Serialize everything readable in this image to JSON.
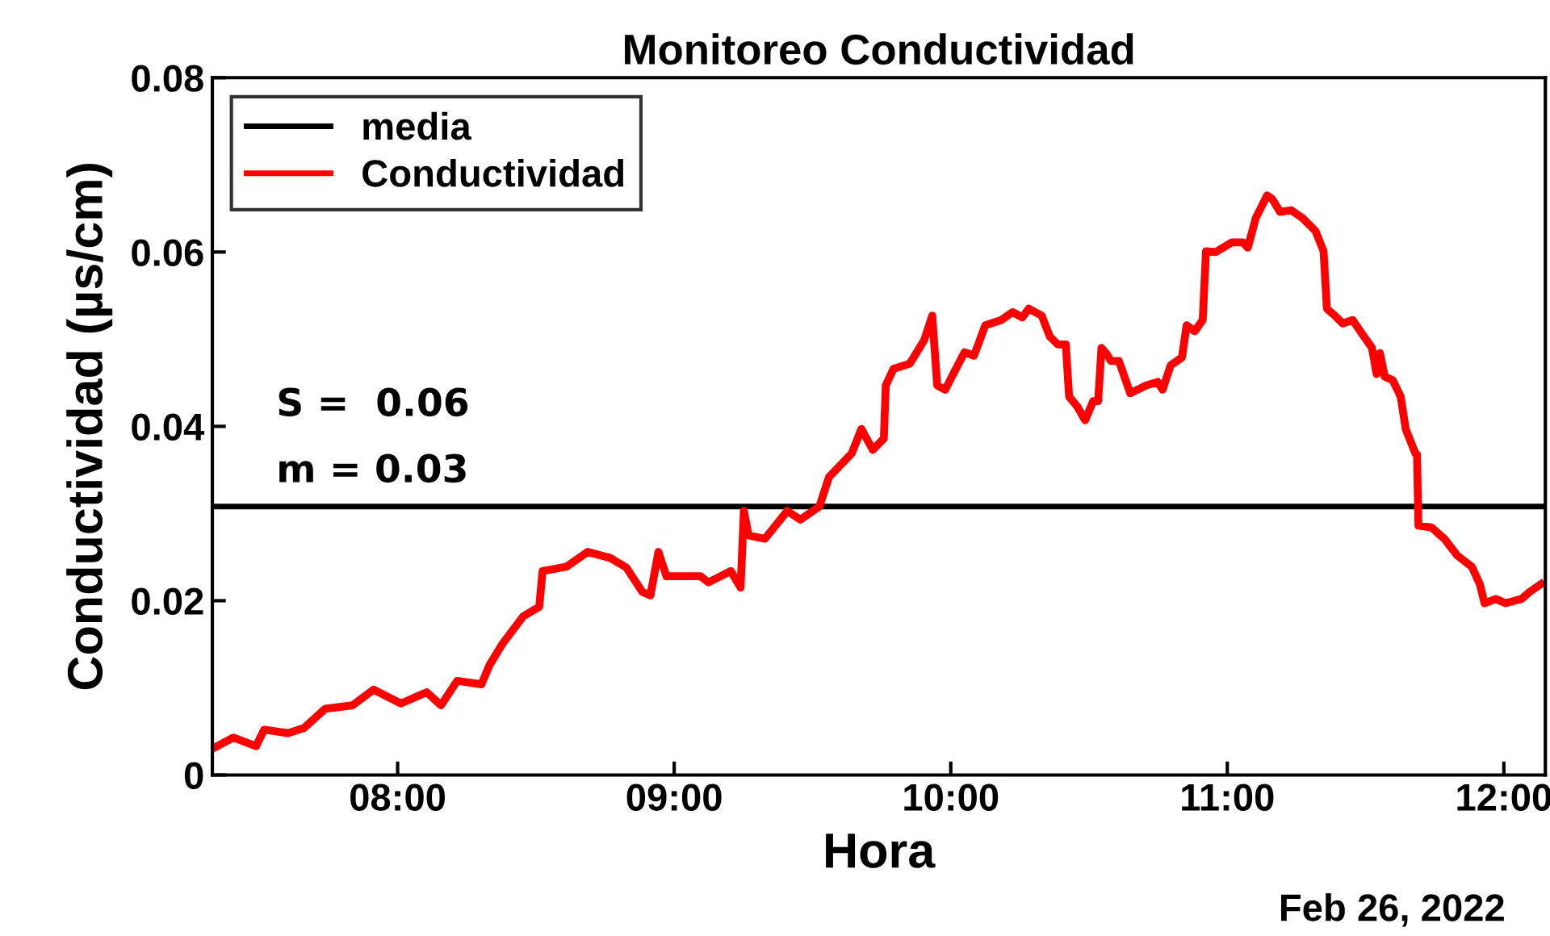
{
  "chart_data": {
    "type": "line",
    "title": "Monitoreo Conductividad",
    "xlabel": "Hora",
    "ylabel": "Conductividad (µs/cm)",
    "annotations": [
      "S =  0.06",
      "m = 0.03",
      "Feb 26, 2022"
    ],
    "xlim": [
      7.33,
      12.15
    ],
    "xticks": [
      {
        "value": 8,
        "label": "08:00"
      },
      {
        "value": 9,
        "label": "09:00"
      },
      {
        "value": 10,
        "label": "10:00"
      },
      {
        "value": 11,
        "label": "11:00"
      },
      {
        "value": 12,
        "label": "12:00"
      }
    ],
    "ylim": [
      0,
      0.08
    ],
    "yticks": [
      {
        "value": 0,
        "label": "0"
      },
      {
        "value": 0.02,
        "label": "0.02"
      },
      {
        "value": 0.04,
        "label": "0.04"
      },
      {
        "value": 0.06,
        "label": "0.06"
      },
      {
        "value": 0.08,
        "label": "0.08"
      }
    ],
    "grid": false,
    "legend": "top left",
    "marker": "none",
    "line_style": "solid",
    "ref_lines": [
      {
        "axis": "y",
        "value": 0.0308,
        "label": "media",
        "color": "#000000"
      }
    ],
    "series": [
      {
        "name": "Conductividad",
        "color": "#ff0000",
        "x": [
          7.33,
          7.406,
          7.488,
          7.517,
          7.604,
          7.662,
          7.738,
          7.837,
          7.913,
          8.012,
          8.105,
          8.157,
          8.215,
          8.303,
          8.332,
          8.378,
          8.454,
          8.512,
          8.524,
          8.611,
          8.687,
          8.769,
          8.827,
          8.885,
          8.914,
          8.943,
          8.972,
          9.095,
          9.124,
          9.205,
          9.24,
          9.252,
          9.269,
          9.328,
          9.409,
          9.456,
          9.525,
          9.56,
          9.642,
          9.677,
          9.718,
          9.758,
          9.765,
          9.793,
          9.852,
          9.904,
          9.933,
          9.951,
          9.98,
          10.009,
          10.05,
          10.084,
          10.125,
          10.183,
          10.224,
          10.259,
          10.282,
          10.329,
          10.358,
          10.387,
          10.416,
          10.428,
          10.457,
          10.486,
          10.515,
          10.533,
          10.545,
          10.562,
          10.579,
          10.608,
          10.649,
          10.707,
          10.748,
          10.766,
          10.795,
          10.836,
          10.853,
          10.882,
          10.911,
          10.923,
          10.958,
          11.016,
          11.057,
          11.074,
          11.103,
          11.144,
          11.162,
          11.191,
          11.231,
          11.272,
          11.319,
          11.348,
          11.36,
          11.389,
          11.418,
          11.453,
          11.494,
          11.523,
          11.54,
          11.552,
          11.569,
          11.598,
          11.627,
          11.645,
          11.68,
          11.686,
          11.691,
          11.738,
          11.785,
          11.831,
          11.884,
          11.913,
          11.93,
          11.971,
          12.006,
          12.064,
          12.093,
          12.134
        ],
        "values": [
          0.003,
          0.0043,
          0.0033,
          0.0052,
          0.0048,
          0.0054,
          0.0076,
          0.008,
          0.0098,
          0.0082,
          0.0095,
          0.008,
          0.0108,
          0.0104,
          0.0126,
          0.015,
          0.0182,
          0.0193,
          0.0234,
          0.0239,
          0.0256,
          0.0249,
          0.0238,
          0.021,
          0.0206,
          0.0256,
          0.0228,
          0.0228,
          0.0221,
          0.0234,
          0.0215,
          0.0303,
          0.0275,
          0.0271,
          0.0303,
          0.0293,
          0.0308,
          0.0342,
          0.0369,
          0.0397,
          0.0373,
          0.0386,
          0.0447,
          0.0466,
          0.0472,
          0.0499,
          0.0527,
          0.0447,
          0.0442,
          0.046,
          0.0485,
          0.0481,
          0.0516,
          0.0522,
          0.0531,
          0.0525,
          0.0535,
          0.0527,
          0.0503,
          0.0494,
          0.0494,
          0.0434,
          0.0423,
          0.0407,
          0.0429,
          0.0429,
          0.049,
          0.0484,
          0.0475,
          0.0475,
          0.0438,
          0.0447,
          0.0451,
          0.0442,
          0.047,
          0.0479,
          0.0516,
          0.0509,
          0.0522,
          0.0601,
          0.06,
          0.0611,
          0.0611,
          0.0605,
          0.0639,
          0.0665,
          0.0661,
          0.0646,
          0.0648,
          0.0639,
          0.0624,
          0.0601,
          0.0535,
          0.0527,
          0.0518,
          0.0522,
          0.0503,
          0.049,
          0.046,
          0.0484,
          0.0457,
          0.0453,
          0.0434,
          0.0397,
          0.0369,
          0.0368,
          0.0286,
          0.0284,
          0.0271,
          0.0252,
          0.0239,
          0.0219,
          0.0197,
          0.0202,
          0.0197,
          0.0202,
          0.021,
          0.0219
        ]
      }
    ]
  }
}
